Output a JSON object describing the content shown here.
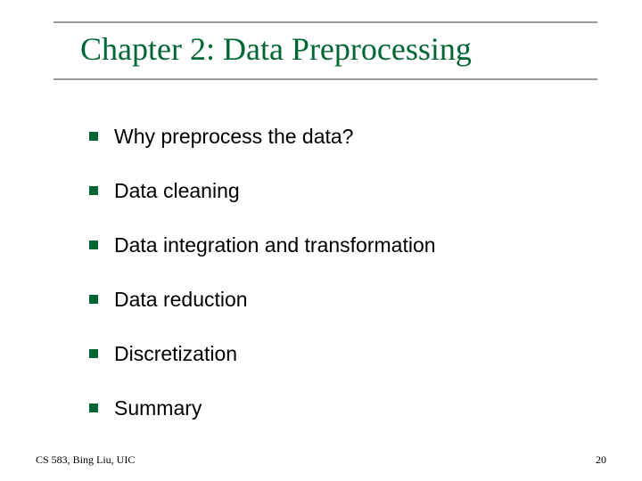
{
  "slide": {
    "title": "Chapter 2: Data Preprocessing",
    "bullets": [
      "Why preprocess the data?",
      "Data cleaning",
      "Data integration and transformation",
      "Data reduction",
      "Discretization",
      "Summary"
    ],
    "footer_left": "CS 583, Bing Liu, UIC",
    "page_number": "20"
  },
  "styling": {
    "title_color": "#006633",
    "bullet_marker_color": "#006633",
    "border_color": "#999999",
    "background_color": "#ffffff",
    "title_font_family": "Times New Roman",
    "title_font_size": 36,
    "bullet_font_family": "Arial",
    "bullet_font_size": 23,
    "footer_font_size": 12,
    "bullet_marker_size": 10
  }
}
